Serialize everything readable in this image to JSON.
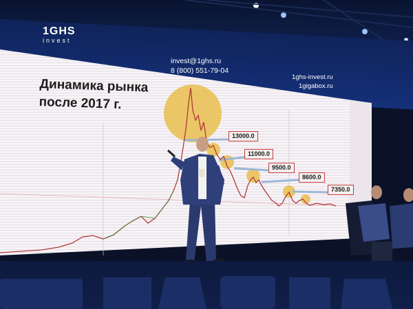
{
  "brand": {
    "name": "1GHS",
    "sub": "invest"
  },
  "contacts": {
    "email": "invest@1ghs.ru",
    "phone": "8 (800) 551-79-04",
    "site1": "1ghs-invest.ru",
    "site2": "1gigabox.ru"
  },
  "slide": {
    "title_line1": "Динамика рынка",
    "title_line2": "после 2017 г."
  },
  "price_tags": [
    {
      "label": "13000.0"
    },
    {
      "label": "11000.0"
    },
    {
      "label": "9500.0"
    },
    {
      "label": "8600.0"
    },
    {
      "label": "7350.0"
    }
  ],
  "colors": {
    "screen_bg": "#f6f3f6",
    "chart_up": "#3e8a3e",
    "chart_down": "#c0392b",
    "highlight": "#e8b838",
    "stage_blue": "#10245a"
  },
  "icons": [
    "stage-spotlight-icon"
  ]
}
